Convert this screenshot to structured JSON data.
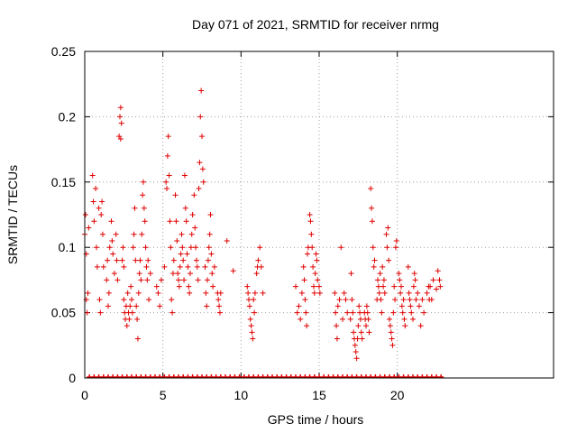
{
  "chart_data": {
    "type": "scatter",
    "title": "Day 071 of 2021, SRMTID for receiver nrmg",
    "xlabel": "GPS time / hours",
    "ylabel": "SRMTID / TECUs",
    "xlim": [
      0,
      30
    ],
    "ylim": [
      0,
      0.25
    ],
    "xticks": [
      0,
      5,
      10,
      15,
      20
    ],
    "yticks": [
      0,
      0.05,
      0.1,
      0.15,
      0.2,
      0.25
    ],
    "ytick_labels": [
      "0",
      "0.05",
      "0.1",
      "0.15",
      "0.2",
      "0.25"
    ],
    "grid": true,
    "marker": "+",
    "marker_color": "#e00000",
    "series": [
      {
        "name": "SRMTID",
        "points": [
          [
            0.0,
            0.11
          ],
          [
            0.05,
            0.125
          ],
          [
            0.1,
            0.095
          ],
          [
            0.1,
            0.06
          ],
          [
            0.15,
            0.05
          ],
          [
            0.2,
            0.065
          ],
          [
            0.25,
            0.115
          ],
          [
            0.5,
            0.155
          ],
          [
            0.55,
            0.135
          ],
          [
            0.6,
            0.12
          ],
          [
            0.7,
            0.145
          ],
          [
            0.75,
            0.1
          ],
          [
            0.8,
            0.085
          ],
          [
            0.9,
            0.13
          ],
          [
            0.95,
            0.06
          ],
          [
            1.0,
            0.05
          ],
          [
            1.05,
            0.125
          ],
          [
            1.1,
            0.135
          ],
          [
            1.15,
            0.11
          ],
          [
            1.2,
            0.085
          ],
          [
            1.4,
            0.075
          ],
          [
            1.45,
            0.09
          ],
          [
            1.5,
            0.055
          ],
          [
            1.55,
            0.065
          ],
          [
            1.6,
            0.1
          ],
          [
            1.7,
            0.12
          ],
          [
            1.75,
            0.105
          ],
          [
            1.8,
            0.095
          ],
          [
            1.9,
            0.08
          ],
          [
            2.0,
            0.11
          ],
          [
            2.05,
            0.09
          ],
          [
            2.1,
            0.075
          ],
          [
            2.2,
            0.185
          ],
          [
            2.25,
            0.2
          ],
          [
            2.3,
            0.207
          ],
          [
            2.35,
            0.195
          ],
          [
            2.3,
            0.183
          ],
          [
            2.4,
            0.09
          ],
          [
            2.45,
            0.1
          ],
          [
            2.5,
            0.085
          ],
          [
            2.5,
            0.06
          ],
          [
            2.55,
            0.05
          ],
          [
            2.6,
            0.045
          ],
          [
            2.65,
            0.055
          ],
          [
            2.7,
            0.04
          ],
          [
            2.75,
            0.065
          ],
          [
            2.8,
            0.05
          ],
          [
            2.85,
            0.045
          ],
          [
            2.9,
            0.055
          ],
          [
            2.95,
            0.07
          ],
          [
            3.0,
            0.06
          ],
          [
            3.05,
            0.05
          ],
          [
            3.1,
            0.1
          ],
          [
            3.15,
            0.11
          ],
          [
            3.2,
            0.13
          ],
          [
            3.25,
            0.09
          ],
          [
            3.3,
            0.055
          ],
          [
            3.35,
            0.045
          ],
          [
            3.4,
            0.03
          ],
          [
            3.45,
            0.065
          ],
          [
            3.5,
            0.08
          ],
          [
            3.55,
            0.09
          ],
          [
            3.6,
            0.075
          ],
          [
            3.65,
            0.11
          ],
          [
            3.7,
            0.14
          ],
          [
            3.75,
            0.15
          ],
          [
            3.8,
            0.13
          ],
          [
            3.85,
            0.12
          ],
          [
            3.9,
            0.1
          ],
          [
            3.95,
            0.085
          ],
          [
            4.0,
            0.075
          ],
          [
            4.05,
            0.09
          ],
          [
            4.1,
            0.06
          ],
          [
            4.2,
            0.08
          ],
          [
            4.6,
            0.07
          ],
          [
            4.7,
            0.065
          ],
          [
            4.8,
            0.055
          ],
          [
            4.9,
            0.075
          ],
          [
            5.1,
            0.085
          ],
          [
            5.2,
            0.15
          ],
          [
            5.25,
            0.145
          ],
          [
            5.3,
            0.17
          ],
          [
            5.35,
            0.185
          ],
          [
            5.4,
            0.155
          ],
          [
            5.45,
            0.12
          ],
          [
            5.5,
            0.1
          ],
          [
            5.55,
            0.06
          ],
          [
            5.6,
            0.05
          ],
          [
            5.65,
            0.08
          ],
          [
            5.7,
            0.09
          ],
          [
            5.8,
            0.14
          ],
          [
            5.85,
            0.12
          ],
          [
            5.9,
            0.105
          ],
          [
            5.95,
            0.08
          ],
          [
            6.0,
            0.075
          ],
          [
            6.05,
            0.07
          ],
          [
            6.1,
            0.085
          ],
          [
            6.15,
            0.095
          ],
          [
            6.2,
            0.11
          ],
          [
            6.25,
            0.1
          ],
          [
            6.3,
            0.09
          ],
          [
            6.35,
            0.075
          ],
          [
            6.4,
            0.155
          ],
          [
            6.45,
            0.13
          ],
          [
            6.5,
            0.12
          ],
          [
            6.55,
            0.095
          ],
          [
            6.6,
            0.085
          ],
          [
            6.65,
            0.07
          ],
          [
            6.7,
            0.065
          ],
          [
            6.75,
            0.08
          ],
          [
            6.8,
            0.1
          ],
          [
            6.85,
            0.11
          ],
          [
            6.9,
            0.125
          ],
          [
            7.0,
            0.14
          ],
          [
            7.05,
            0.115
          ],
          [
            7.1,
            0.1
          ],
          [
            7.15,
            0.09
          ],
          [
            7.2,
            0.085
          ],
          [
            7.25,
            0.075
          ],
          [
            7.3,
            0.145
          ],
          [
            7.35,
            0.165
          ],
          [
            7.4,
            0.2
          ],
          [
            7.45,
            0.22
          ],
          [
            7.5,
            0.185
          ],
          [
            7.55,
            0.16
          ],
          [
            7.6,
            0.15
          ],
          [
            7.7,
            0.085
          ],
          [
            7.75,
            0.065
          ],
          [
            7.8,
            0.055
          ],
          [
            7.85,
            0.075
          ],
          [
            7.9,
            0.09
          ],
          [
            7.95,
            0.1
          ],
          [
            8.0,
            0.11
          ],
          [
            8.05,
            0.125
          ],
          [
            8.1,
            0.095
          ],
          [
            8.15,
            0.08
          ],
          [
            8.2,
            0.07
          ],
          [
            8.3,
            0.085
          ],
          [
            8.5,
            0.065
          ],
          [
            8.55,
            0.06
          ],
          [
            8.6,
            0.055
          ],
          [
            8.65,
            0.05
          ],
          [
            8.7,
            0.065
          ],
          [
            9.1,
            0.105
          ],
          [
            9.5,
            0.082
          ],
          [
            10.4,
            0.07
          ],
          [
            10.45,
            0.065
          ],
          [
            10.5,
            0.06
          ],
          [
            10.55,
            0.055
          ],
          [
            10.6,
            0.045
          ],
          [
            10.65,
            0.04
          ],
          [
            10.7,
            0.035
          ],
          [
            10.75,
            0.03
          ],
          [
            10.8,
            0.06
          ],
          [
            10.85,
            0.05
          ],
          [
            10.9,
            0.065
          ],
          [
            11.0,
            0.08
          ],
          [
            11.05,
            0.085
          ],
          [
            11.1,
            0.09
          ],
          [
            11.2,
            0.1
          ],
          [
            11.3,
            0.085
          ],
          [
            11.4,
            0.065
          ],
          [
            13.5,
            0.07
          ],
          [
            13.6,
            0.05
          ],
          [
            13.7,
            0.055
          ],
          [
            13.8,
            0.045
          ],
          [
            13.9,
            0.065
          ],
          [
            14.0,
            0.085
          ],
          [
            14.05,
            0.075
          ],
          [
            14.1,
            0.06
          ],
          [
            14.15,
            0.05
          ],
          [
            14.2,
            0.04
          ],
          [
            14.25,
            0.095
          ],
          [
            14.3,
            0.1
          ],
          [
            14.4,
            0.125
          ],
          [
            14.45,
            0.12
          ],
          [
            14.5,
            0.11
          ],
          [
            14.55,
            0.1
          ],
          [
            14.6,
            0.085
          ],
          [
            14.65,
            0.07
          ],
          [
            14.7,
            0.065
          ],
          [
            14.75,
            0.08
          ],
          [
            14.8,
            0.095
          ],
          [
            14.85,
            0.09
          ],
          [
            14.9,
            0.075
          ],
          [
            15.0,
            0.07
          ],
          [
            15.05,
            0.065
          ],
          [
            16.0,
            0.065
          ],
          [
            16.05,
            0.05
          ],
          [
            16.1,
            0.04
          ],
          [
            16.15,
            0.03
          ],
          [
            16.2,
            0.055
          ],
          [
            16.3,
            0.06
          ],
          [
            16.4,
            0.1
          ],
          [
            16.5,
            0.045
          ],
          [
            16.6,
            0.065
          ],
          [
            16.7,
            0.06
          ],
          [
            16.8,
            0.05
          ],
          [
            17.0,
            0.045
          ],
          [
            17.05,
            0.08
          ],
          [
            17.1,
            0.06
          ],
          [
            17.15,
            0.05
          ],
          [
            17.2,
            0.035
          ],
          [
            17.25,
            0.03
          ],
          [
            17.3,
            0.025
          ],
          [
            17.35,
            0.02
          ],
          [
            17.4,
            0.015
          ],
          [
            17.45,
            0.03
          ],
          [
            17.5,
            0.04
          ],
          [
            17.55,
            0.055
          ],
          [
            17.6,
            0.05
          ],
          [
            17.65,
            0.045
          ],
          [
            17.7,
            0.035
          ],
          [
            17.75,
            0.03
          ],
          [
            17.9,
            0.05
          ],
          [
            17.95,
            0.045
          ],
          [
            18.0,
            0.04
          ],
          [
            18.05,
            0.055
          ],
          [
            18.1,
            0.05
          ],
          [
            18.15,
            0.045
          ],
          [
            18.2,
            0.035
          ],
          [
            18.3,
            0.145
          ],
          [
            18.35,
            0.13
          ],
          [
            18.4,
            0.12
          ],
          [
            18.45,
            0.1
          ],
          [
            18.5,
            0.085
          ],
          [
            18.55,
            0.09
          ],
          [
            18.7,
            0.06
          ],
          [
            18.75,
            0.075
          ],
          [
            18.8,
            0.07
          ],
          [
            18.85,
            0.065
          ],
          [
            18.9,
            0.08
          ],
          [
            18.95,
            0.06
          ],
          [
            19.0,
            0.05
          ],
          [
            19.05,
            0.085
          ],
          [
            19.1,
            0.07
          ],
          [
            19.15,
            0.075
          ],
          [
            19.2,
            0.065
          ],
          [
            19.3,
            0.11
          ],
          [
            19.35,
            0.1
          ],
          [
            19.4,
            0.115
          ],
          [
            19.45,
            0.09
          ],
          [
            19.5,
            0.045
          ],
          [
            19.55,
            0.04
          ],
          [
            19.6,
            0.035
          ],
          [
            19.65,
            0.03
          ],
          [
            19.7,
            0.025
          ],
          [
            19.75,
            0.05
          ],
          [
            19.8,
            0.07
          ],
          [
            19.85,
            0.06
          ],
          [
            19.9,
            0.1
          ],
          [
            19.95,
            0.105
          ],
          [
            20.1,
            0.08
          ],
          [
            20.15,
            0.075
          ],
          [
            20.2,
            0.065
          ],
          [
            20.25,
            0.07
          ],
          [
            20.3,
            0.055
          ],
          [
            20.35,
            0.05
          ],
          [
            20.4,
            0.06
          ],
          [
            20.45,
            0.045
          ],
          [
            20.5,
            0.04
          ],
          [
            20.7,
            0.085
          ],
          [
            20.75,
            0.065
          ],
          [
            20.8,
            0.06
          ],
          [
            20.85,
            0.055
          ],
          [
            20.9,
            0.05
          ],
          [
            21.0,
            0.045
          ],
          [
            21.05,
            0.07
          ],
          [
            21.1,
            0.08
          ],
          [
            21.15,
            0.075
          ],
          [
            21.2,
            0.06
          ],
          [
            21.3,
            0.065
          ],
          [
            21.4,
            0.055
          ],
          [
            21.5,
            0.04
          ],
          [
            21.6,
            0.06
          ],
          [
            21.7,
            0.05
          ],
          [
            21.9,
            0.065
          ],
          [
            22.0,
            0.07
          ],
          [
            22.05,
            0.06
          ],
          [
            22.1,
            0.07
          ],
          [
            22.2,
            0.06
          ],
          [
            22.3,
            0.075
          ],
          [
            22.5,
            0.068
          ],
          [
            22.6,
            0.082
          ],
          [
            22.7,
            0.075
          ],
          [
            22.75,
            0.07
          ]
        ],
        "zero_x": [
          0.3,
          0.6,
          0.9,
          1.2,
          1.5,
          1.8,
          2.1,
          2.4,
          2.7,
          3.0,
          3.3,
          3.6,
          3.9,
          4.2,
          4.5,
          4.8,
          5.1,
          5.4,
          5.7,
          6.0,
          6.3,
          6.6,
          6.9,
          7.2,
          7.5,
          7.8,
          8.1,
          8.4,
          8.7,
          9.0,
          9.3,
          9.6,
          9.9,
          10.2,
          10.5,
          10.8,
          11.1,
          11.4,
          11.7,
          12.0,
          12.3,
          12.6,
          12.9,
          13.2,
          13.5,
          13.8,
          14.1,
          14.4,
          14.7,
          15.0,
          15.3,
          15.6,
          15.9,
          16.2,
          16.5,
          16.8,
          17.1,
          17.4,
          17.7,
          18.0,
          18.3,
          18.6,
          18.9,
          19.2,
          19.5,
          19.8,
          20.1,
          20.4,
          20.7,
          21.0,
          21.3,
          21.6,
          21.9,
          22.2,
          22.5,
          22.8
        ]
      }
    ]
  }
}
